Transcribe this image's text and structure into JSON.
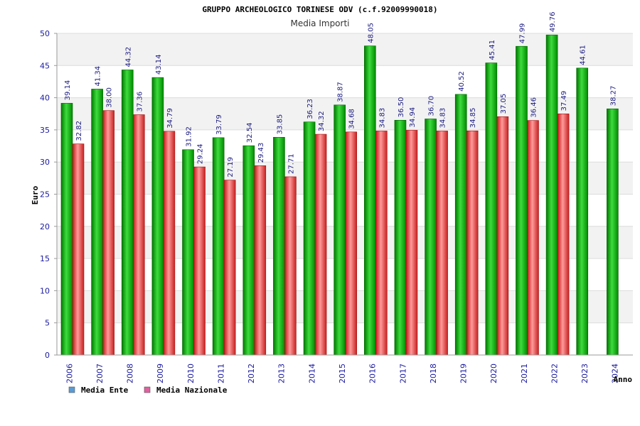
{
  "chart_data": {
    "type": "bar",
    "title": "GRUPPO ARCHEOLOGICO TORINESE ODV (c.f.92009990018)",
    "subtitle": "Media Importi",
    "xlabel": "Anno",
    "ylabel": "Euro",
    "ylim": [
      0,
      50
    ],
    "yticks": [
      "0",
      "5",
      "10",
      "15",
      "20",
      "25",
      "30",
      "35",
      "40",
      "45",
      "50"
    ],
    "grid": true,
    "legend_position": "bottom-left",
    "categories": [
      "2006",
      "2007",
      "2008",
      "2009",
      "2010",
      "2011",
      "2012",
      "2013",
      "2014",
      "2015",
      "2016",
      "2017",
      "2018",
      "2019",
      "2020",
      "2021",
      "2022",
      "2023",
      "2024"
    ],
    "series": [
      {
        "name": "Media Ente",
        "legend_color": "#5b9bd5",
        "bar_color": "#00b400",
        "values": [
          39.14,
          41.34,
          44.32,
          43.14,
          31.92,
          33.79,
          32.54,
          33.85,
          36.23,
          38.87,
          48.05,
          36.5,
          36.7,
          40.52,
          45.41,
          47.99,
          49.76,
          44.61,
          38.27
        ],
        "labels": [
          "39.14",
          "41.34",
          "44.32",
          "43.14",
          "31.92",
          "33.79",
          "32.54",
          "33.85",
          "36.23",
          "38.87",
          "48.05",
          "36.50",
          "36.70",
          "40.52",
          "45.41",
          "47.99",
          "49.76",
          "44.61",
          "38.27"
        ]
      },
      {
        "name": "Media Nazionale",
        "legend_color": "#e060a0",
        "bar_color": "#e84040",
        "values": [
          32.82,
          38.0,
          37.36,
          34.79,
          29.24,
          27.19,
          29.43,
          27.71,
          34.32,
          34.68,
          34.83,
          34.94,
          34.83,
          34.85,
          37.05,
          36.46,
          37.49,
          null,
          null
        ],
        "labels": [
          "32.82",
          "38.00",
          "37.36",
          "34.79",
          "29.24",
          "27.19",
          "29.43",
          "27.71",
          "34.32",
          "34.68",
          "34.83",
          "34.94",
          "34.83",
          "34.85",
          "37.05",
          "36.46",
          "37.49",
          null,
          null
        ]
      }
    ]
  }
}
